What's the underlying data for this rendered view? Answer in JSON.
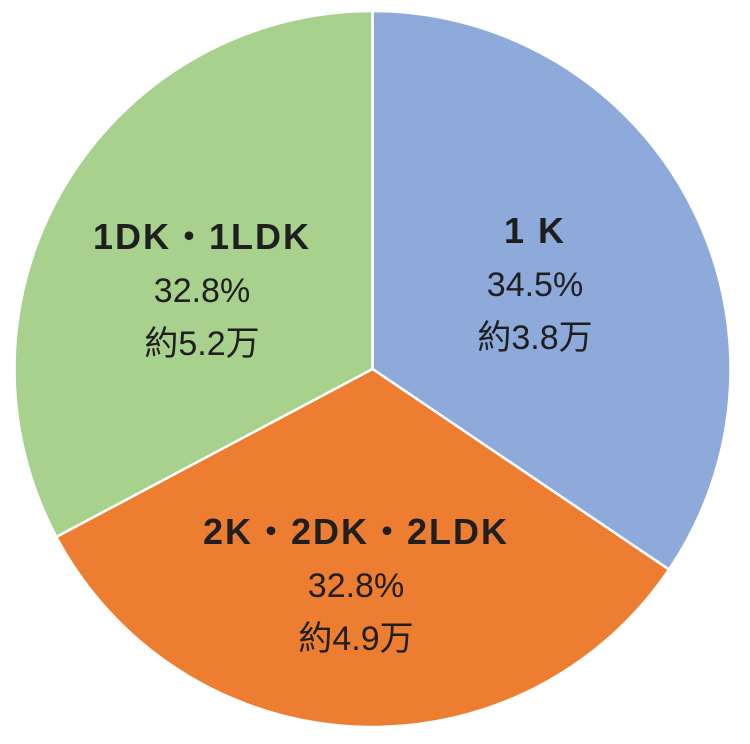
{
  "chart_data": {
    "type": "pie",
    "title": "",
    "background": "#FFFFFF",
    "label_color": "#1F1F1F",
    "border_color": "#FFFFFF",
    "border_width": 2.5,
    "start_angle_deg": 0,
    "direction": "clockwise",
    "center": [
      372.5,
      369
    ],
    "radius": 358,
    "slices": [
      {
        "label": "1 K",
        "value": 34.5,
        "pct_label": "34.5%",
        "approx_label": "約3.8万",
        "color": "#8EAADB"
      },
      {
        "label": "2K・2DK・2LDK",
        "value": 32.8,
        "pct_label": "32.8%",
        "approx_label": "約4.9万",
        "color": "#ED7D31"
      },
      {
        "label": "1DK・1LDK",
        "value": 32.8,
        "pct_label": "32.8%",
        "approx_label": "約5.2万",
        "color": "#A9D18E"
      }
    ]
  }
}
